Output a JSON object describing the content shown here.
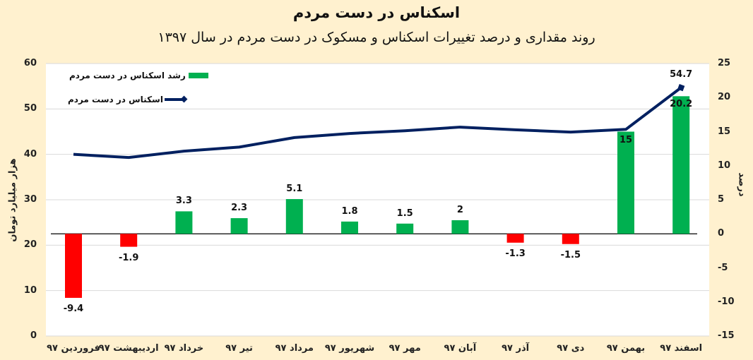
{
  "title": "اسکناس در دست مردم",
  "subtitle": "روند مقداری و درصد تغییرات اسکناس و مسکوک در دست مردم در سال ۱۳۹۷",
  "colors": {
    "background": "#fff1cf",
    "plot_background": "#ffffff",
    "positive_bar": "#00b050",
    "negative_bar": "#ff0000",
    "line": "#002060",
    "grid": "#d9d9d9"
  },
  "legend": {
    "bar_label": "رشد اسکناس در دست مردم",
    "line_label": "اسکناس در دست مردم"
  },
  "axes": {
    "left_title": "هزار میلیارد تومان",
    "right_title": "درصد",
    "left_ticks": [
      "60",
      "50",
      "40",
      "30",
      "20",
      "10",
      "0"
    ],
    "right_ticks": [
      "25",
      "20",
      "15",
      "10",
      "5",
      "0",
      "-5",
      "-10",
      "-15"
    ]
  },
  "chart_data": {
    "type": "bar+line",
    "title": "اسکناس در دست مردم",
    "subtitle": "روند مقداری و درصد تغییرات اسکناس و مسکوک در دست مردم در سال ۱۳۹۷",
    "categories": [
      "فروردین ۹۷",
      "اردیبهشت ۹۷",
      "خرداد ۹۷",
      "تیر ۹۷",
      "مرداد ۹۷",
      "شهریور ۹۷",
      "مهر ۹۷",
      "آبان ۹۷",
      "آذر ۹۷",
      "دی ۹۷",
      "بهمن ۹۷",
      "اسفند ۹۷"
    ],
    "series": [
      {
        "name": "رشد اسکناس در دست مردم",
        "type": "bar",
        "axis": "right",
        "values": [
          -9.4,
          -1.9,
          3.3,
          2.3,
          5.1,
          1.8,
          1.5,
          2,
          -1.3,
          -1.5,
          15,
          20.2
        ],
        "labels": [
          "-9.4",
          "-1.9",
          "3.3",
          "2.3",
          "5.1",
          "1.8",
          "1.5",
          "2",
          "-1.3",
          "-1.5",
          "15",
          "20.2"
        ]
      },
      {
        "name": "اسکناس در دست مردم",
        "type": "line",
        "axis": "left",
        "values": [
          40.0,
          39.3,
          40.7,
          41.6,
          43.7,
          44.6,
          45.2,
          46.0,
          45.4,
          44.9,
          45.5,
          54.7
        ],
        "labels": [
          "",
          "",
          "",
          "",
          "",
          "",
          "",
          "",
          "",
          "",
          "",
          "54.7"
        ]
      }
    ],
    "ylabel_left": "هزار میلیارد تومان",
    "ylabel_right": "درصد",
    "ylim_left": [
      0,
      60
    ],
    "ylim_right": [
      -15,
      25
    ],
    "grid": true,
    "legend_position": "top-left inside plot"
  }
}
